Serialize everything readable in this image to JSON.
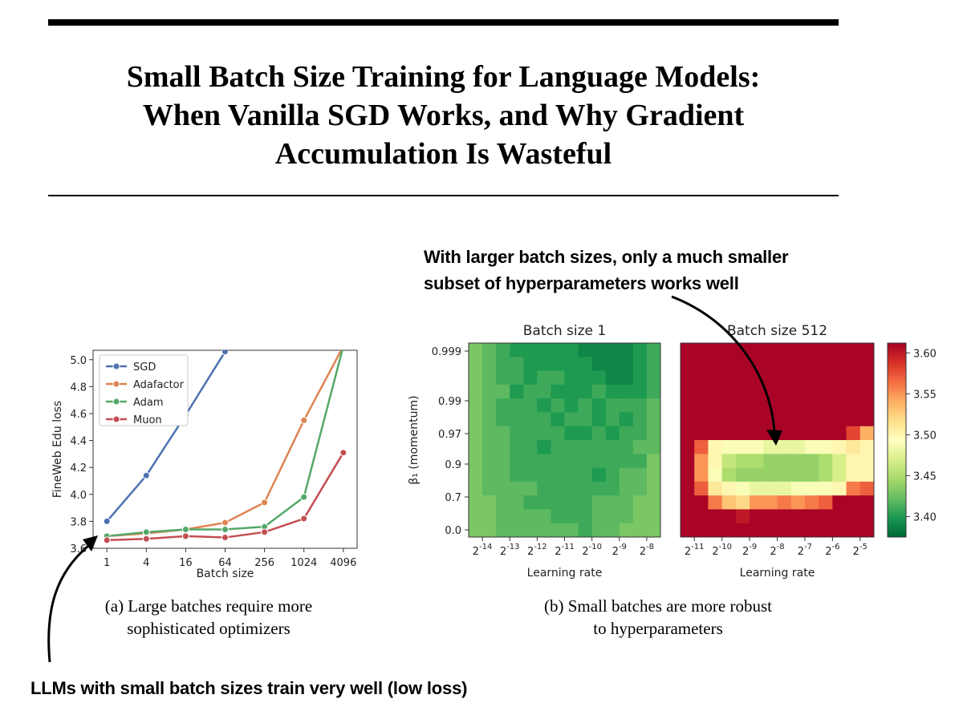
{
  "paper": {
    "title_lines": [
      "Small Batch Size Training for Language Models:",
      "When Vanilla SGD Works, and Why Gradient",
      "Accumulation Is Wasteful"
    ],
    "annotations": {
      "top_right_lines": [
        "With larger batch sizes, only a much smaller",
        "subset of hyperparameters works well"
      ],
      "bottom_left": "LLMs with small batch sizes train very well (low loss)"
    },
    "captions": {
      "a_lines": [
        "(a) Large batches require more",
        "sophisticated optimizers"
      ],
      "b_lines": [
        "(b) Small batches are more robust",
        "to hyperparameters"
      ]
    }
  },
  "chart_data": [
    {
      "type": "line",
      "xlabel": "Batch size",
      "ylabel": "FineWeb Edu loss",
      "x": [
        1,
        4,
        16,
        64,
        256,
        1024,
        4096
      ],
      "x_ticks": [
        "1",
        "4",
        "16",
        "64",
        "256",
        "1024",
        "4096"
      ],
      "y_ticks": [
        "3.6",
        "3.8",
        "4.0",
        "4.2",
        "4.4",
        "4.6",
        "4.8",
        "5.0"
      ],
      "x_scale": "log2",
      "ylim": [
        3.6,
        5.07
      ],
      "legend_position": "top-left",
      "series": [
        {
          "name": "SGD",
          "color": "#4c72b0",
          "values": [
            3.8,
            4.14,
            4.59,
            5.06,
            null,
            null,
            null
          ]
        },
        {
          "name": "Adafactor",
          "color": "#dd8452",
          "values": [
            3.69,
            3.71,
            3.74,
            3.79,
            3.94,
            4.55,
            5.1
          ]
        },
        {
          "name": "Adam",
          "color": "#55a868",
          "values": [
            3.69,
            3.72,
            3.74,
            3.74,
            3.76,
            3.98,
            5.1
          ]
        },
        {
          "name": "Muon",
          "color": "#c44e52",
          "values": [
            3.66,
            3.67,
            3.69,
            3.68,
            3.72,
            3.82,
            4.31
          ]
        }
      ]
    },
    {
      "type": "heatmap",
      "title": "Batch size 1",
      "xlabel": "Learning rate",
      "ylabel": "β₁ (momentum)",
      "x_ticks": [
        "-14",
        "-13",
        "-12",
        "-11",
        "-10",
        "-9",
        "-8"
      ],
      "x_tick_base": "2",
      "y_ticks": [
        "0.999",
        "0.99",
        "0.97",
        "0.9",
        "0.7",
        "0.0"
      ],
      "grid": [
        [
          3.43,
          3.42,
          3.41,
          3.4,
          3.4,
          3.4,
          3.4,
          3.4,
          3.39,
          3.39,
          3.39,
          3.39,
          3.4,
          3.41
        ],
        [
          3.43,
          3.42,
          3.41,
          3.41,
          3.4,
          3.4,
          3.4,
          3.4,
          3.4,
          3.39,
          3.39,
          3.39,
          3.4,
          3.41
        ],
        [
          3.43,
          3.42,
          3.41,
          3.41,
          3.4,
          3.41,
          3.41,
          3.4,
          3.4,
          3.4,
          3.39,
          3.39,
          3.4,
          3.41
        ],
        [
          3.43,
          3.42,
          3.42,
          3.4,
          3.41,
          3.41,
          3.4,
          3.4,
          3.4,
          3.41,
          3.4,
          3.4,
          3.4,
          3.41
        ],
        [
          3.43,
          3.42,
          3.41,
          3.41,
          3.41,
          3.4,
          3.41,
          3.4,
          3.41,
          3.4,
          3.41,
          3.41,
          3.41,
          3.42
        ],
        [
          3.43,
          3.42,
          3.41,
          3.41,
          3.41,
          3.41,
          3.4,
          3.41,
          3.41,
          3.4,
          3.41,
          3.4,
          3.41,
          3.42
        ],
        [
          3.43,
          3.42,
          3.42,
          3.41,
          3.41,
          3.41,
          3.41,
          3.4,
          3.4,
          3.41,
          3.4,
          3.41,
          3.41,
          3.42
        ],
        [
          3.43,
          3.42,
          3.42,
          3.41,
          3.41,
          3.4,
          3.41,
          3.41,
          3.41,
          3.41,
          3.41,
          3.41,
          3.42,
          3.42
        ],
        [
          3.43,
          3.42,
          3.42,
          3.41,
          3.41,
          3.41,
          3.41,
          3.41,
          3.41,
          3.41,
          3.41,
          3.41,
          3.41,
          3.43
        ],
        [
          3.43,
          3.42,
          3.42,
          3.41,
          3.41,
          3.41,
          3.41,
          3.41,
          3.41,
          3.4,
          3.41,
          3.42,
          3.42,
          3.43
        ],
        [
          3.43,
          3.42,
          3.42,
          3.42,
          3.42,
          3.41,
          3.41,
          3.41,
          3.41,
          3.41,
          3.41,
          3.42,
          3.42,
          3.43
        ],
        [
          3.43,
          3.43,
          3.42,
          3.42,
          3.41,
          3.41,
          3.41,
          3.41,
          3.41,
          3.42,
          3.42,
          3.42,
          3.43,
          3.43
        ],
        [
          3.43,
          3.43,
          3.42,
          3.42,
          3.42,
          3.42,
          3.41,
          3.41,
          3.41,
          3.42,
          3.42,
          3.42,
          3.43,
          3.43
        ],
        [
          3.43,
          3.43,
          3.42,
          3.42,
          3.42,
          3.42,
          3.42,
          3.42,
          3.41,
          3.42,
          3.42,
          3.43,
          3.43,
          3.43
        ]
      ]
    },
    {
      "type": "heatmap",
      "title": "Batch size 512",
      "xlabel": "Learning rate",
      "x_ticks": [
        "-11",
        "-10",
        "-9",
        "-8",
        "-7",
        "-6",
        "-5"
      ],
      "x_tick_base": "2",
      "grid": [
        [
          3.61,
          3.61,
          3.61,
          3.61,
          3.61,
          3.61,
          3.61,
          3.61,
          3.61,
          3.61,
          3.61,
          3.61,
          3.61,
          3.61
        ],
        [
          3.61,
          3.61,
          3.61,
          3.61,
          3.61,
          3.61,
          3.61,
          3.61,
          3.61,
          3.61,
          3.61,
          3.61,
          3.61,
          3.61
        ],
        [
          3.61,
          3.61,
          3.61,
          3.61,
          3.61,
          3.61,
          3.61,
          3.61,
          3.61,
          3.61,
          3.61,
          3.61,
          3.61,
          3.61
        ],
        [
          3.61,
          3.61,
          3.61,
          3.61,
          3.61,
          3.61,
          3.61,
          3.61,
          3.61,
          3.61,
          3.61,
          3.61,
          3.61,
          3.61
        ],
        [
          3.61,
          3.61,
          3.61,
          3.61,
          3.61,
          3.61,
          3.61,
          3.61,
          3.61,
          3.61,
          3.61,
          3.61,
          3.61,
          3.61
        ],
        [
          3.61,
          3.61,
          3.61,
          3.61,
          3.61,
          3.61,
          3.61,
          3.61,
          3.61,
          3.61,
          3.61,
          3.61,
          3.61,
          3.61
        ],
        [
          3.61,
          3.61,
          3.61,
          3.61,
          3.61,
          3.61,
          3.61,
          3.61,
          3.61,
          3.61,
          3.61,
          3.61,
          3.58,
          3.54
        ],
        [
          3.61,
          3.57,
          3.5,
          3.49,
          3.49,
          3.49,
          3.48,
          3.48,
          3.48,
          3.49,
          3.49,
          3.5,
          3.51,
          3.5
        ],
        [
          3.61,
          3.55,
          3.5,
          3.46,
          3.45,
          3.45,
          3.44,
          3.44,
          3.44,
          3.44,
          3.45,
          3.47,
          3.5,
          3.5
        ],
        [
          3.61,
          3.55,
          3.49,
          3.45,
          3.44,
          3.44,
          3.44,
          3.44,
          3.44,
          3.44,
          3.45,
          3.47,
          3.5,
          3.5
        ],
        [
          3.61,
          3.57,
          3.51,
          3.5,
          3.49,
          3.48,
          3.48,
          3.48,
          3.49,
          3.49,
          3.49,
          3.5,
          3.56,
          3.57
        ],
        [
          3.61,
          3.61,
          3.56,
          3.53,
          3.52,
          3.55,
          3.55,
          3.56,
          3.55,
          3.56,
          3.57,
          3.61,
          3.61,
          3.61
        ],
        [
          3.61,
          3.61,
          3.61,
          3.61,
          3.6,
          3.61,
          3.61,
          3.61,
          3.61,
          3.61,
          3.61,
          3.61,
          3.61,
          3.61
        ],
        [
          3.61,
          3.61,
          3.61,
          3.61,
          3.61,
          3.61,
          3.61,
          3.61,
          3.61,
          3.61,
          3.61,
          3.61,
          3.61,
          3.61
        ]
      ]
    },
    {
      "type": "colorbar",
      "range": [
        3.375,
        3.612
      ],
      "ticks": [
        "3.40",
        "3.45",
        "3.50",
        "3.55",
        "3.60"
      ],
      "colormap": "RdYlGn_r"
    }
  ]
}
